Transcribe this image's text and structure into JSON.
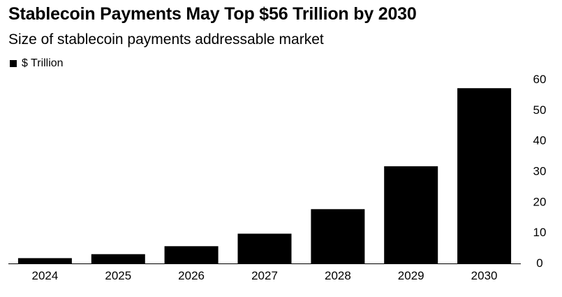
{
  "chart_data": {
    "type": "bar",
    "title": "Stablecoin Payments May Top $56 Trillion by 2030",
    "subtitle": "Size of stablecoin payments addressable market",
    "legend": [
      {
        "name": "$ Trillion",
        "color": "#000000"
      }
    ],
    "legend_placement": "top-left",
    "categories": [
      "2024",
      "2025",
      "2026",
      "2027",
      "2028",
      "2029",
      "2030"
    ],
    "series": [
      {
        "name": "$ Trillion",
        "values": [
          1.5,
          2.8,
          5.4,
          9.5,
          17.5,
          31.5,
          57.0
        ]
      }
    ],
    "yticks": [
      0,
      10,
      20,
      30,
      40,
      50,
      60
    ],
    "ylim": [
      0,
      60
    ],
    "y_axis_side": "right",
    "bar_color": "#000000",
    "grid": false
  }
}
